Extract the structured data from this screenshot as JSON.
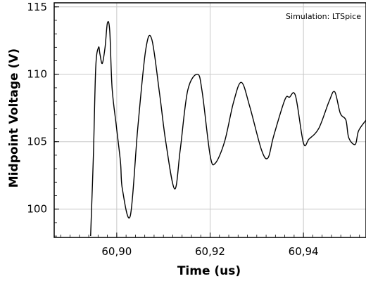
{
  "chart_data": {
    "type": "line",
    "title": "",
    "xlabel": "Time (us)",
    "ylabel": "Midpoint Voltage (V)",
    "annotation": "Simulation: LTSpice",
    "xlim": [
      60.8866,
      60.9534
    ],
    "ylim": [
      97.9,
      115.3
    ],
    "xticks": [
      60.9,
      60.92,
      60.94
    ],
    "xtick_labels": [
      "60,90",
      "60,92",
      "60,94"
    ],
    "yticks": [
      100,
      105,
      110,
      115
    ],
    "ytick_labels": [
      "100",
      "105",
      "110",
      "115"
    ],
    "grid": true,
    "series": [
      {
        "name": "",
        "color": "#000000",
        "x": [
          60.8944,
          60.895,
          60.8955,
          60.8961,
          60.8964,
          60.8969,
          60.8975,
          60.898,
          60.8985,
          60.899,
          60.8999,
          60.9008,
          60.9012,
          60.9029,
          60.9045,
          60.9062,
          60.9075,
          60.9092,
          60.9105,
          60.9124,
          60.9136,
          60.9152,
          60.9173,
          60.9183,
          60.92,
          60.9211,
          60.9231,
          60.925,
          60.9267,
          60.9285,
          60.931,
          60.9324,
          60.9336,
          60.936,
          60.937,
          60.9383,
          60.94,
          60.9412,
          60.9433,
          60.9455,
          60.9467,
          60.9479,
          60.9491,
          60.9497,
          60.9511,
          60.9518,
          60.9534
        ],
        "y": [
          98,
          104,
          110.5,
          112,
          111.5,
          110.8,
          112,
          113.8,
          113.2,
          109,
          106.2,
          103.5,
          101.5,
          99.5,
          106,
          111.8,
          112.6,
          108.5,
          105,
          101.5,
          104.4,
          108.8,
          110,
          108.7,
          104,
          103.4,
          105,
          107.9,
          109.4,
          107.6,
          104.4,
          103.8,
          105.4,
          108.1,
          108.3,
          108.4,
          104.9,
          105.2,
          106,
          108,
          108.7,
          107.1,
          106.6,
          105.3,
          104.8,
          105.8,
          106.6
        ]
      }
    ]
  }
}
